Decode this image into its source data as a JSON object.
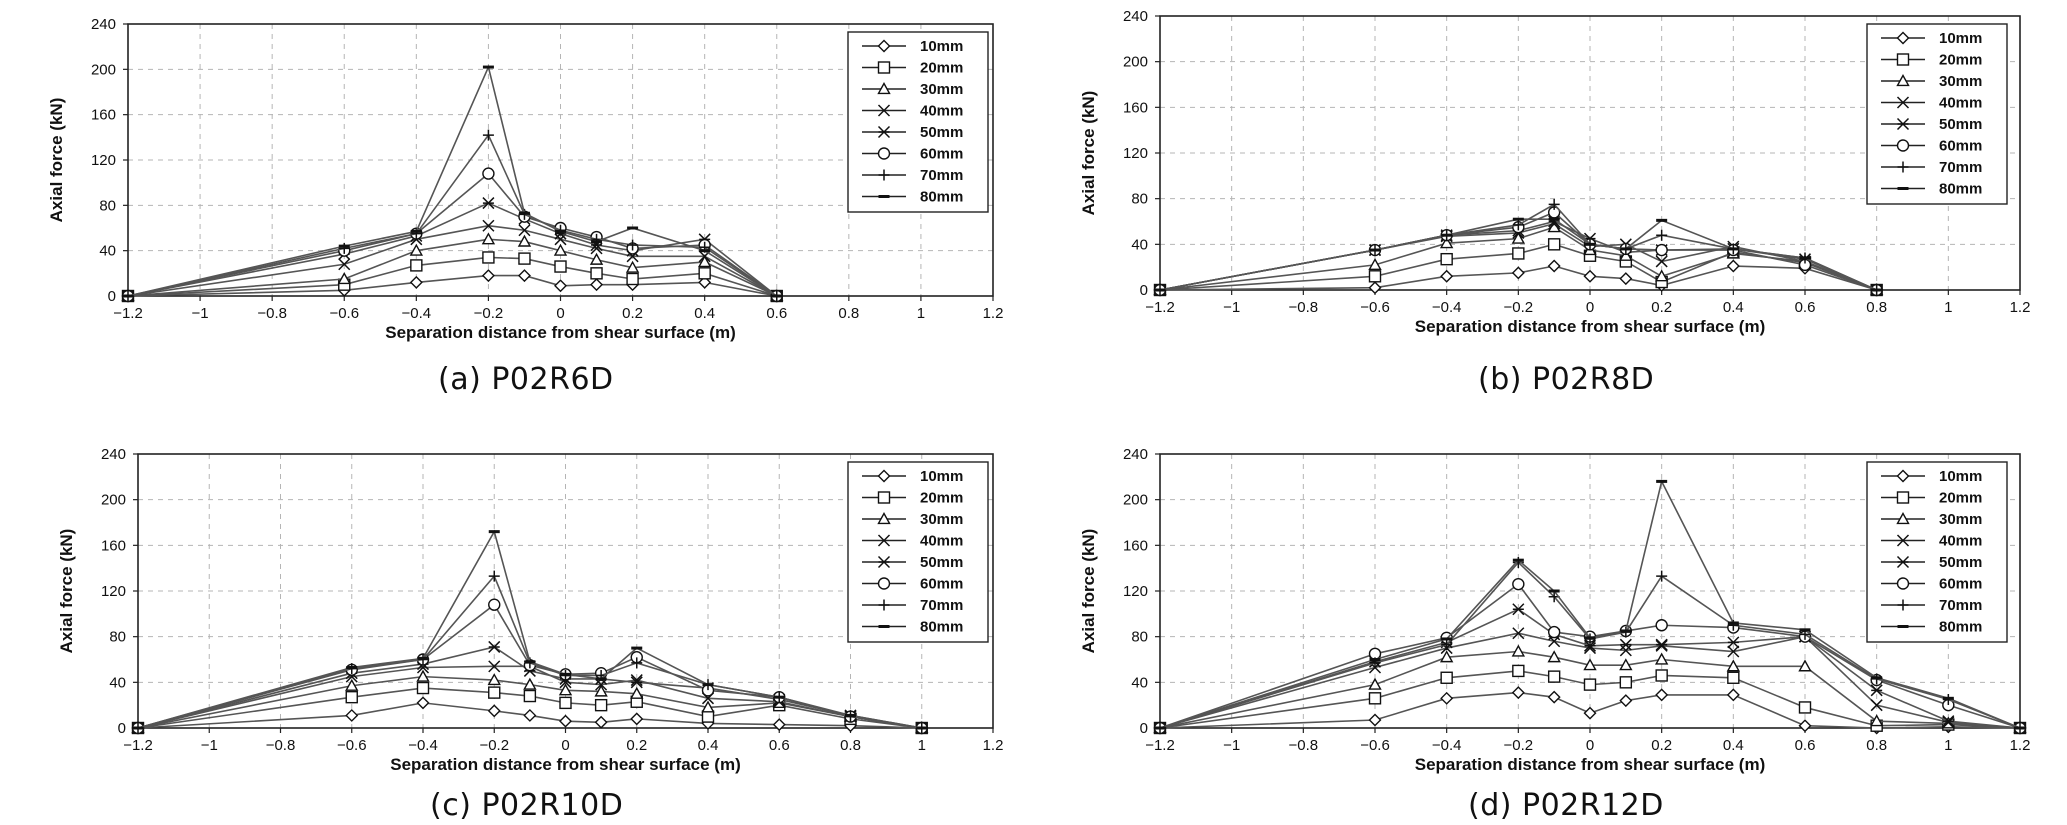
{
  "chart_data": [
    {
      "type": "line",
      "caption": "(a) P02R6D",
      "xlabel": "Separation distance from shear surface (m)",
      "ylabel": "Axial force (kN)",
      "xlim": [
        -1.2,
        1.2
      ],
      "ylim": [
        0,
        240
      ],
      "xticks": [
        -1.2,
        -1,
        -0.8,
        -0.6,
        -0.4,
        -0.2,
        0,
        0.2,
        0.4,
        0.6,
        0.8,
        1,
        1.2
      ],
      "xtick_labels": [
        "−1.2",
        "−1",
        "−0.8",
        "−0.6",
        "−0.4",
        "−0.2",
        "0",
        "0.2",
        "0.4",
        "0.6",
        "0.8",
        "1",
        "1.2"
      ],
      "yticks": [
        0,
        40,
        80,
        120,
        160,
        200,
        240
      ],
      "ytick_labels": [
        "0",
        "40",
        "80",
        "120",
        "160",
        "200",
        "240"
      ],
      "grid": true,
      "legend_position": "top-right",
      "x": [
        -1.2,
        -0.6,
        -0.4,
        -0.2,
        -0.1,
        0,
        0.1,
        0.2,
        0.4,
        0.6
      ],
      "series": [
        {
          "name": "10mm",
          "marker": "diamond",
          "values": [
            0,
            5,
            12,
            18,
            18,
            9,
            10,
            10,
            12,
            0
          ]
        },
        {
          "name": "20mm",
          "marker": "square",
          "values": [
            0,
            10,
            27,
            34,
            33,
            26,
            20,
            15,
            20,
            0
          ]
        },
        {
          "name": "30mm",
          "marker": "triangle",
          "values": [
            0,
            15,
            40,
            50,
            48,
            40,
            32,
            25,
            30,
            0
          ]
        },
        {
          "name": "40mm",
          "marker": "x",
          "values": [
            0,
            28,
            50,
            62,
            58,
            50,
            42,
            35,
            35,
            0
          ]
        },
        {
          "name": "50mm",
          "marker": "asterisk",
          "values": [
            0,
            37,
            53,
            82,
            68,
            55,
            45,
            40,
            50,
            0
          ]
        },
        {
          "name": "60mm",
          "marker": "circle",
          "values": [
            0,
            40,
            55,
            108,
            70,
            60,
            52,
            42,
            45,
            0
          ]
        },
        {
          "name": "70mm",
          "marker": "plus",
          "values": [
            0,
            42,
            55,
            142,
            72,
            58,
            50,
            45,
            43,
            0
          ]
        },
        {
          "name": "80mm",
          "marker": "dash",
          "values": [
            0,
            44,
            57,
            202,
            73,
            57,
            48,
            60,
            40,
            0
          ]
        }
      ]
    },
    {
      "type": "line",
      "caption": "(b) P02R8D",
      "xlabel": "Separation distance from shear surface (m)",
      "ylabel": "Axial force (kN)",
      "xlim": [
        -1.2,
        1.2
      ],
      "ylim": [
        0,
        240
      ],
      "xticks": [
        -1.2,
        -1,
        -0.8,
        -0.6,
        -0.4,
        -0.2,
        0,
        0.2,
        0.4,
        0.6,
        0.8,
        1,
        1.2
      ],
      "xtick_labels": [
        "−1.2",
        "−1",
        "−0.8",
        "−0.6",
        "−0.4",
        "−0.2",
        "0",
        "0.2",
        "0.4",
        "0.6",
        "0.8",
        "1",
        "1.2"
      ],
      "yticks": [
        0,
        40,
        80,
        120,
        160,
        200,
        240
      ],
      "ytick_labels": [
        "0",
        "40",
        "80",
        "120",
        "160",
        "200",
        "240"
      ],
      "grid": true,
      "legend_position": "top-right",
      "x": [
        -1.2,
        -0.6,
        -0.4,
        -0.2,
        -0.1,
        0,
        0.1,
        0.2,
        0.4,
        0.6,
        0.8
      ],
      "series": [
        {
          "name": "10mm",
          "marker": "diamond",
          "values": [
            0,
            2,
            12,
            15,
            21,
            12,
            10,
            4,
            21,
            19,
            0
          ]
        },
        {
          "name": "20mm",
          "marker": "square",
          "values": [
            0,
            12,
            27,
            32,
            40,
            30,
            25,
            7,
            33,
            24,
            0
          ]
        },
        {
          "name": "30mm",
          "marker": "triangle",
          "values": [
            0,
            22,
            41,
            45,
            55,
            35,
            30,
            12,
            32,
            25,
            0
          ]
        },
        {
          "name": "40mm",
          "marker": "x",
          "values": [
            0,
            35,
            47,
            50,
            58,
            38,
            40,
            25,
            38,
            25,
            0
          ]
        },
        {
          "name": "50mm",
          "marker": "asterisk",
          "values": [
            0,
            35,
            48,
            52,
            60,
            45,
            33,
            35,
            36,
            27,
            0
          ]
        },
        {
          "name": "60mm",
          "marker": "circle",
          "values": [
            0,
            35,
            48,
            55,
            68,
            40,
            36,
            35,
            35,
            22,
            0
          ]
        },
        {
          "name": "70mm",
          "marker": "plus",
          "values": [
            0,
            35,
            48,
            57,
            75,
            40,
            36,
            48,
            36,
            28,
            0
          ]
        },
        {
          "name": "80mm",
          "marker": "dash",
          "values": [
            0,
            35,
            48,
            62,
            62,
            40,
            36,
            61,
            36,
            28,
            0
          ]
        }
      ]
    },
    {
      "type": "line",
      "caption": "(c) P02R10D",
      "xlabel": "Separation distance from shear surface (m)",
      "ylabel": "Axial force (kN)",
      "xlim": [
        -1.2,
        1.2
      ],
      "ylim": [
        0,
        240
      ],
      "xticks": [
        -1.2,
        -1,
        -0.8,
        -0.6,
        -0.4,
        -0.2,
        0,
        0.2,
        0.4,
        0.6,
        0.8,
        1,
        1.2
      ],
      "xtick_labels": [
        "−1.2",
        "−1",
        "−0.8",
        "−0.6",
        "−0.4",
        "−0.2",
        "0",
        "0.2",
        "0.4",
        "0.6",
        "0.8",
        "1",
        "1.2"
      ],
      "yticks": [
        0,
        40,
        80,
        120,
        160,
        200,
        240
      ],
      "ytick_labels": [
        "0",
        "40",
        "80",
        "120",
        "160",
        "200",
        "240"
      ],
      "grid": true,
      "legend_position": "top-right",
      "x": [
        -1.2,
        -0.6,
        -0.4,
        -0.2,
        -0.1,
        0,
        0.1,
        0.2,
        0.4,
        0.6,
        0.8,
        1
      ],
      "series": [
        {
          "name": "10mm",
          "marker": "diamond",
          "values": [
            0,
            11,
            22,
            15,
            11,
            6,
            5,
            8,
            4,
            3,
            2,
            0
          ]
        },
        {
          "name": "20mm",
          "marker": "square",
          "values": [
            0,
            27,
            35,
            31,
            28,
            22,
            20,
            23,
            10,
            20,
            8,
            0
          ]
        },
        {
          "name": "30mm",
          "marker": "triangle",
          "values": [
            0,
            37,
            45,
            42,
            38,
            33,
            32,
            30,
            18,
            22,
            10,
            0
          ]
        },
        {
          "name": "40mm",
          "marker": "x",
          "values": [
            0,
            45,
            53,
            54,
            54,
            40,
            38,
            42,
            26,
            23,
            10,
            0
          ]
        },
        {
          "name": "50mm",
          "marker": "asterisk",
          "values": [
            0,
            48,
            56,
            71,
            50,
            43,
            43,
            40,
            35,
            25,
            11,
            0
          ]
        },
        {
          "name": "60mm",
          "marker": "circle",
          "values": [
            0,
            51,
            60,
            108,
            55,
            47,
            48,
            62,
            33,
            27,
            10,
            0
          ]
        },
        {
          "name": "70mm",
          "marker": "plus",
          "values": [
            0,
            52,
            60,
            133,
            57,
            46,
            46,
            57,
            38,
            27,
            10,
            0
          ]
        },
        {
          "name": "80mm",
          "marker": "dash",
          "values": [
            0,
            53,
            61,
            172,
            58,
            47,
            43,
            70,
            38,
            27,
            11,
            0
          ]
        }
      ]
    },
    {
      "type": "line",
      "caption": "(d) P02R12D",
      "xlabel": "Separation distance from shear surface (m)",
      "ylabel": "Axial force (kN)",
      "xlim": [
        -1.2,
        1.2
      ],
      "ylim": [
        0,
        240
      ],
      "xticks": [
        -1.2,
        -1,
        -0.8,
        -0.6,
        -0.4,
        -0.2,
        0,
        0.2,
        0.4,
        0.6,
        0.8,
        1,
        1.2
      ],
      "xtick_labels": [
        "−1.2",
        "−1",
        "−0.8",
        "−0.6",
        "−0.4",
        "−0.2",
        "0",
        "0.2",
        "0.4",
        "0.6",
        "0.8",
        "1",
        "1.2"
      ],
      "yticks": [
        0,
        40,
        80,
        120,
        160,
        200,
        240
      ],
      "ytick_labels": [
        "0",
        "40",
        "80",
        "120",
        "160",
        "200",
        "240"
      ],
      "grid": true,
      "legend_position": "top-right",
      "x": [
        -1.2,
        -0.6,
        -0.4,
        -0.2,
        -0.1,
        0,
        0.1,
        0.2,
        0.4,
        0.6,
        0.8,
        1,
        1.2
      ],
      "series": [
        {
          "name": "10mm",
          "marker": "diamond",
          "values": [
            0,
            7,
            26,
            31,
            27,
            13,
            24,
            29,
            29,
            2,
            0,
            1,
            0
          ]
        },
        {
          "name": "20mm",
          "marker": "square",
          "values": [
            0,
            26,
            44,
            50,
            45,
            38,
            40,
            46,
            44,
            18,
            2,
            3,
            0
          ]
        },
        {
          "name": "30mm",
          "marker": "triangle",
          "values": [
            0,
            38,
            62,
            67,
            62,
            55,
            55,
            60,
            54,
            54,
            6,
            4,
            0
          ]
        },
        {
          "name": "40mm",
          "marker": "x",
          "values": [
            0,
            53,
            70,
            83,
            76,
            70,
            68,
            72,
            67,
            80,
            20,
            5,
            0
          ]
        },
        {
          "name": "50mm",
          "marker": "asterisk",
          "values": [
            0,
            58,
            75,
            104,
            82,
            72,
            73,
            73,
            75,
            80,
            33,
            6,
            0
          ]
        },
        {
          "name": "60mm",
          "marker": "circle",
          "values": [
            0,
            65,
            79,
            126,
            84,
            80,
            85,
            90,
            88,
            80,
            42,
            20,
            0
          ]
        },
        {
          "name": "70mm",
          "marker": "plus",
          "values": [
            0,
            57,
            73,
            145,
            115,
            78,
            84,
            133,
            90,
            82,
            43,
            25,
            0
          ]
        },
        {
          "name": "80mm",
          "marker": "dash",
          "values": [
            0,
            60,
            78,
            147,
            120,
            79,
            85,
            216,
            92,
            86,
            44,
            26,
            0
          ]
        }
      ]
    }
  ]
}
